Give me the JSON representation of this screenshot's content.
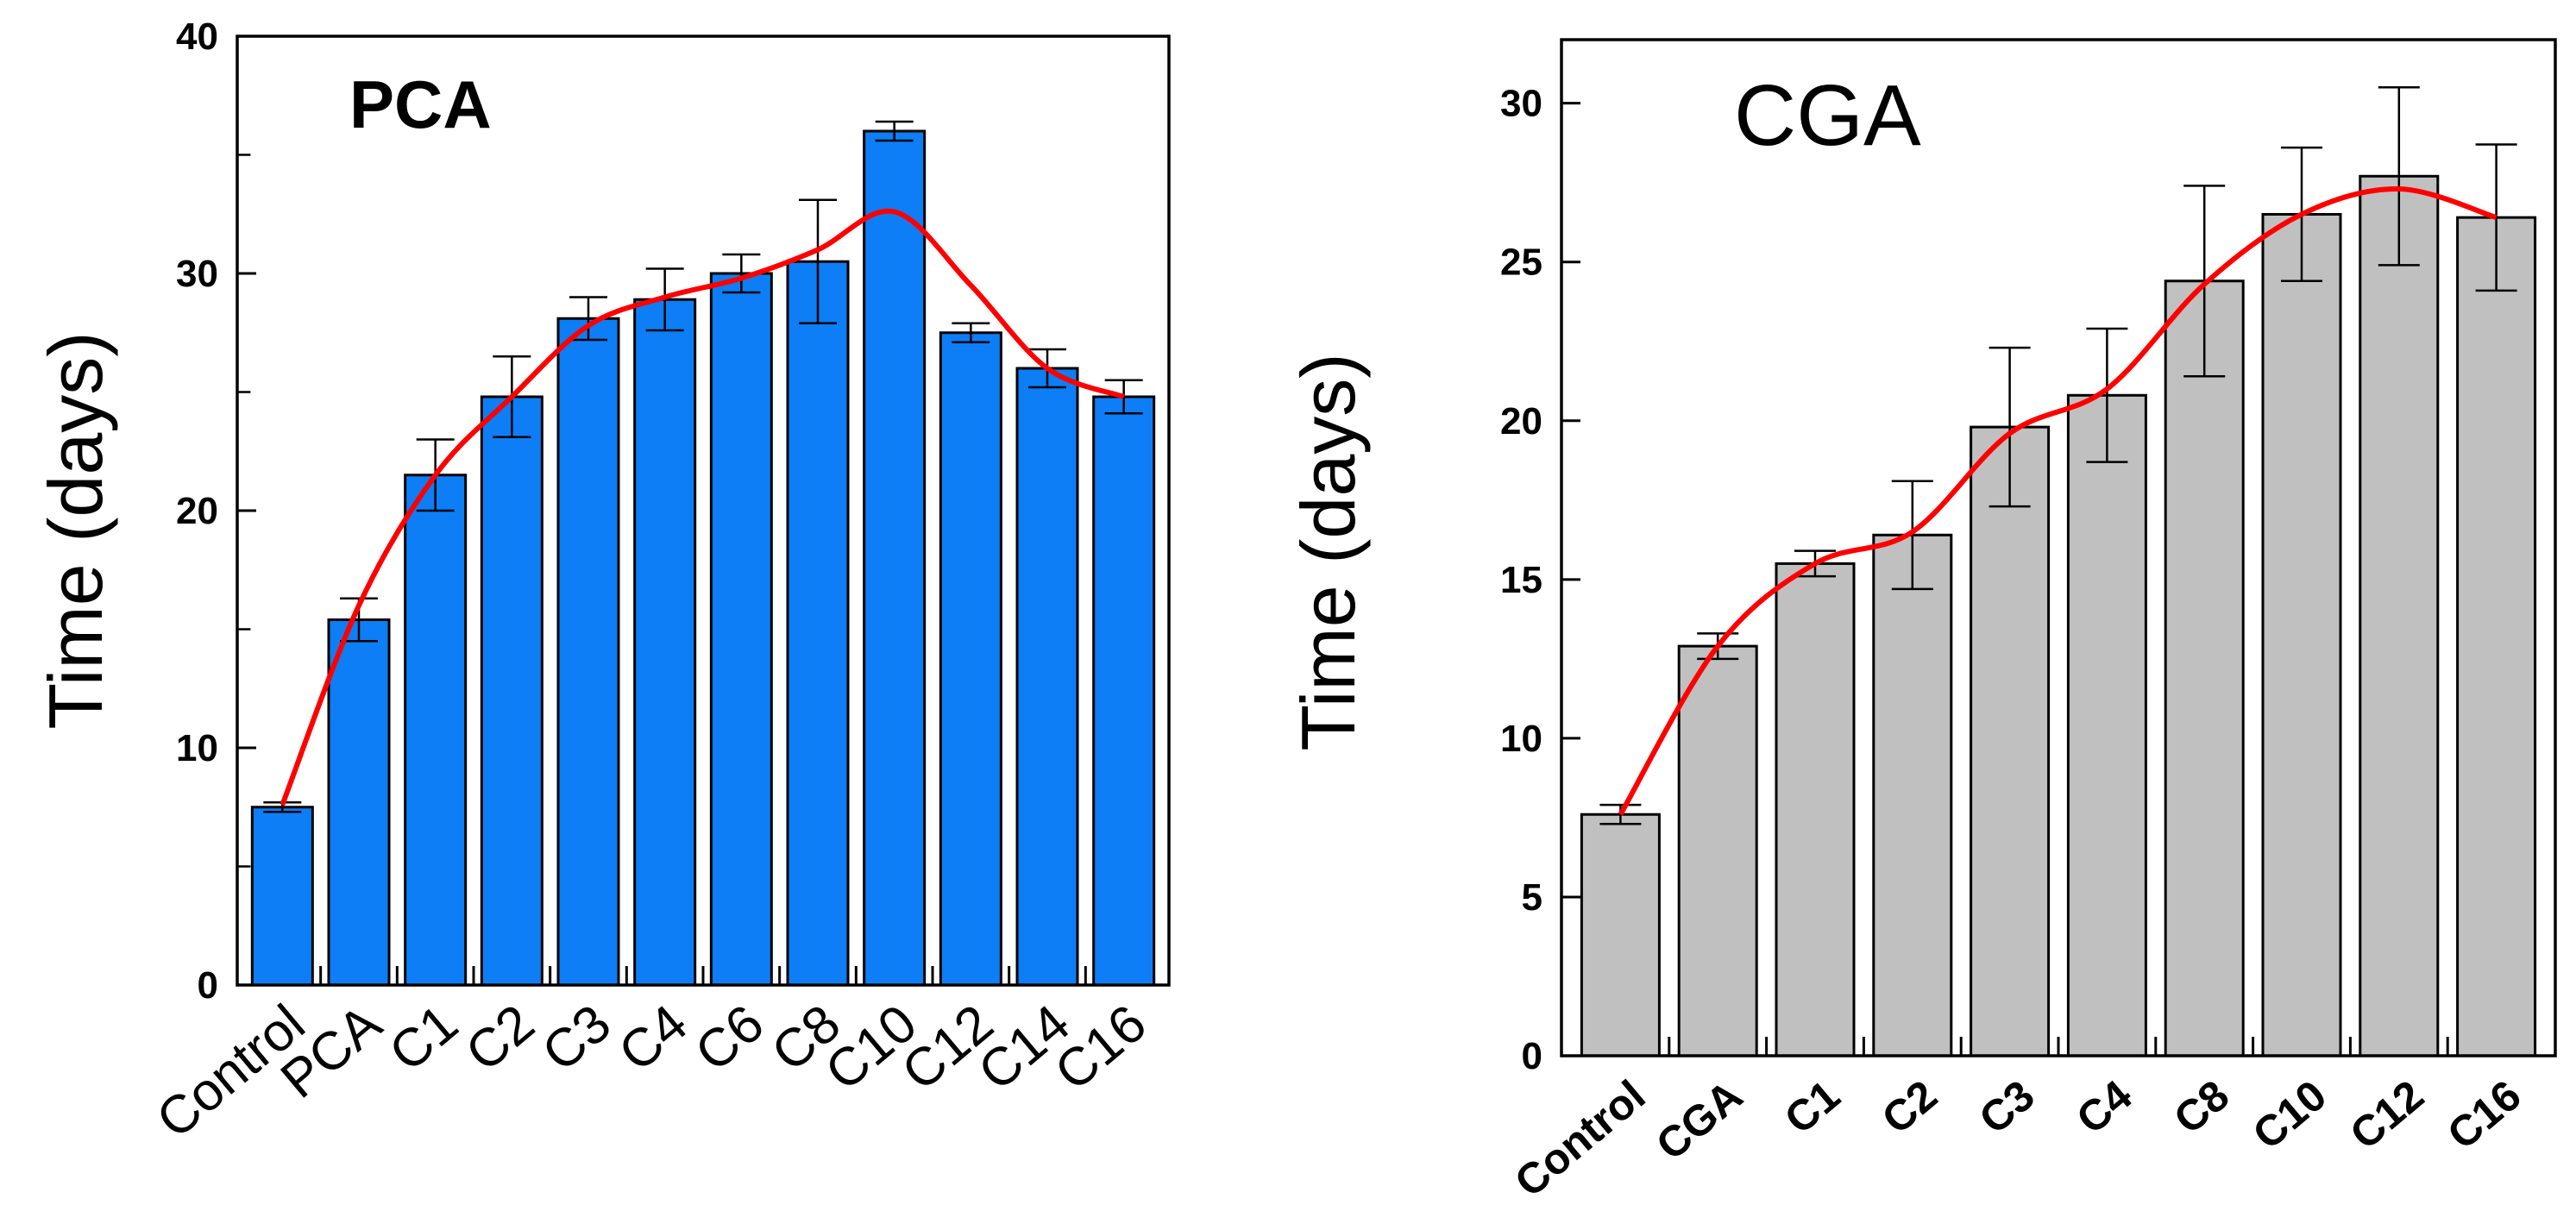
{
  "chart_data": [
    {
      "type": "bar",
      "title": "PCA",
      "xlabel": "",
      "ylabel": "Time (days)",
      "ylim": [
        0,
        40
      ],
      "yticks": [
        0,
        10,
        20,
        30,
        40
      ],
      "categories": [
        "Control",
        "PCA",
        "C1",
        "C2",
        "C3",
        "C4",
        "C6",
        "C8",
        "C10",
        "C12",
        "C14",
        "C16"
      ],
      "values": [
        7.5,
        15.4,
        21.5,
        24.8,
        28.1,
        28.9,
        30.0,
        30.5,
        36.0,
        27.5,
        26.0,
        24.8
      ],
      "errors": [
        0.2,
        0.9,
        1.5,
        1.7,
        0.9,
        1.3,
        0.8,
        2.6,
        0.4,
        0.4,
        0.8,
        0.7
      ],
      "trend": [
        7.6,
        16.0,
        21.5,
        24.8,
        27.8,
        29.0,
        29.8,
        31.0,
        32.6,
        29.5,
        26.0,
        24.8
      ],
      "bar_color": "#0d7ef5",
      "trend_color": "#ff0000"
    },
    {
      "type": "bar",
      "title": "CGA",
      "xlabel": "",
      "ylabel": "Time (days)",
      "ylim": [
        0,
        32
      ],
      "yticks": [
        0,
        5,
        10,
        15,
        20,
        25,
        30
      ],
      "categories": [
        "Control",
        "CGA",
        "C1",
        "C2",
        "C3",
        "C4",
        "C8",
        "C10",
        "C12",
        "C16"
      ],
      "values": [
        7.6,
        12.9,
        15.5,
        16.4,
        19.8,
        20.8,
        24.4,
        26.5,
        27.7,
        26.4
      ],
      "errors": [
        0.3,
        0.4,
        0.4,
        1.7,
        2.5,
        2.1,
        3.0,
        2.1,
        2.8,
        2.3
      ],
      "trend": [
        7.6,
        12.9,
        15.5,
        16.5,
        19.6,
        21.0,
        24.3,
        26.5,
        27.3,
        26.4
      ],
      "bar_color": "#c0c0c0",
      "trend_color": "#ff0000"
    }
  ]
}
